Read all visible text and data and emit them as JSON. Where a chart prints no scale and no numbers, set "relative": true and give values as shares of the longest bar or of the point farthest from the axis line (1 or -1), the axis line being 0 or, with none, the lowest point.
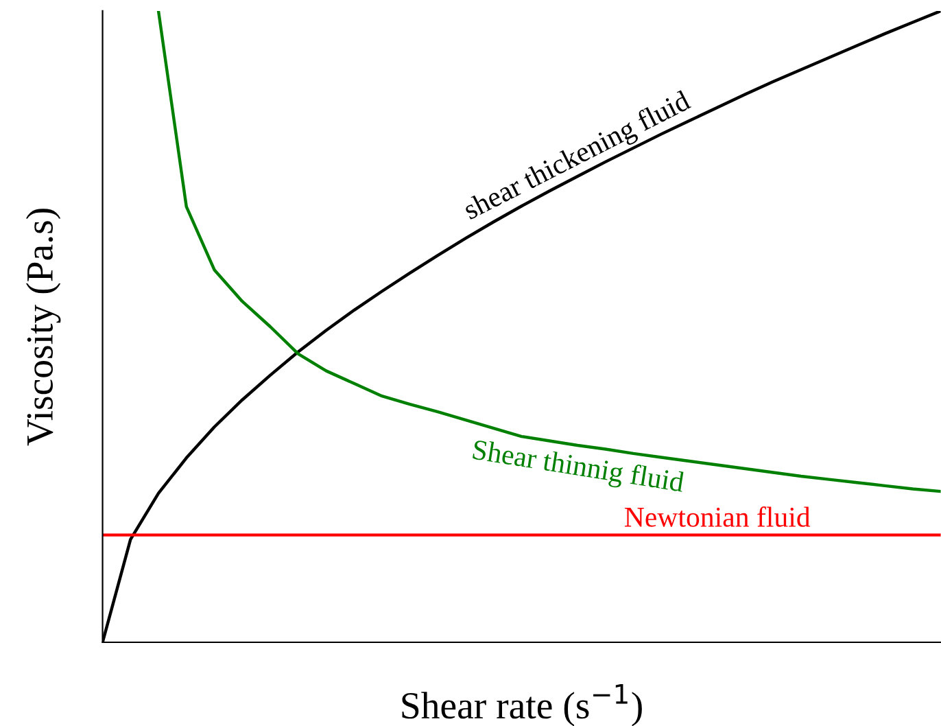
{
  "chart_data": {
    "type": "line",
    "relative": true,
    "xlabel": "Shear rate (s$^{−1}$)",
    "ylabel": "Viscosity (Pa.s)",
    "categories": [
      null,
      null,
      null,
      null,
      null,
      null,
      null,
      null,
      null,
      null,
      null,
      null,
      null,
      null,
      null,
      null,
      null,
      null,
      null,
      null,
      null,
      null,
      null,
      null,
      null,
      null,
      null,
      null,
      null,
      null,
      null
    ],
    "series": [
      {
        "name": "shear thickening fluid",
        "color": "#000000",
        "values": [
          0,
          0.163,
          0.236,
          0.292,
          0.341,
          0.384,
          0.423,
          0.46,
          0.494,
          0.526,
          0.556,
          0.585,
          0.613,
          0.64,
          0.666,
          0.691,
          0.715,
          0.738,
          0.761,
          0.783,
          0.805,
          0.826,
          0.847,
          0.868,
          0.888,
          0.907,
          0.926,
          0.945,
          0.964,
          0.982,
          1
        ]
      },
      {
        "name": "Shear thinnig fluid",
        "color": "#008000",
        "values": [
          null,
          null,
          1.0,
          0.69,
          0.59,
          0.54,
          0.5,
          0.457,
          0.43,
          0.41,
          0.39,
          0.377,
          0.365,
          0.352,
          0.339,
          0.326,
          0.319,
          0.312,
          0.306,
          0.299,
          0.293,
          0.287,
          0.281,
          0.275,
          0.269,
          0.263,
          0.258,
          0.253,
          0.248,
          0.243,
          0.239
        ]
      },
      {
        "name": "Newtonian fluid",
        "color": "#ff0000",
        "values": [
          0.17,
          0.17,
          0.17,
          0.17,
          0.17,
          0.17,
          0.17,
          0.17,
          0.17,
          0.17,
          0.17,
          0.17,
          0.17,
          0.17,
          0.17,
          0.17,
          0.17,
          0.17,
          0.17,
          0.17,
          0.17,
          0.17,
          0.17,
          0.17,
          0.17,
          0.17,
          0.17,
          0.17,
          0.17,
          0.17,
          0.17
        ]
      }
    ]
  }
}
